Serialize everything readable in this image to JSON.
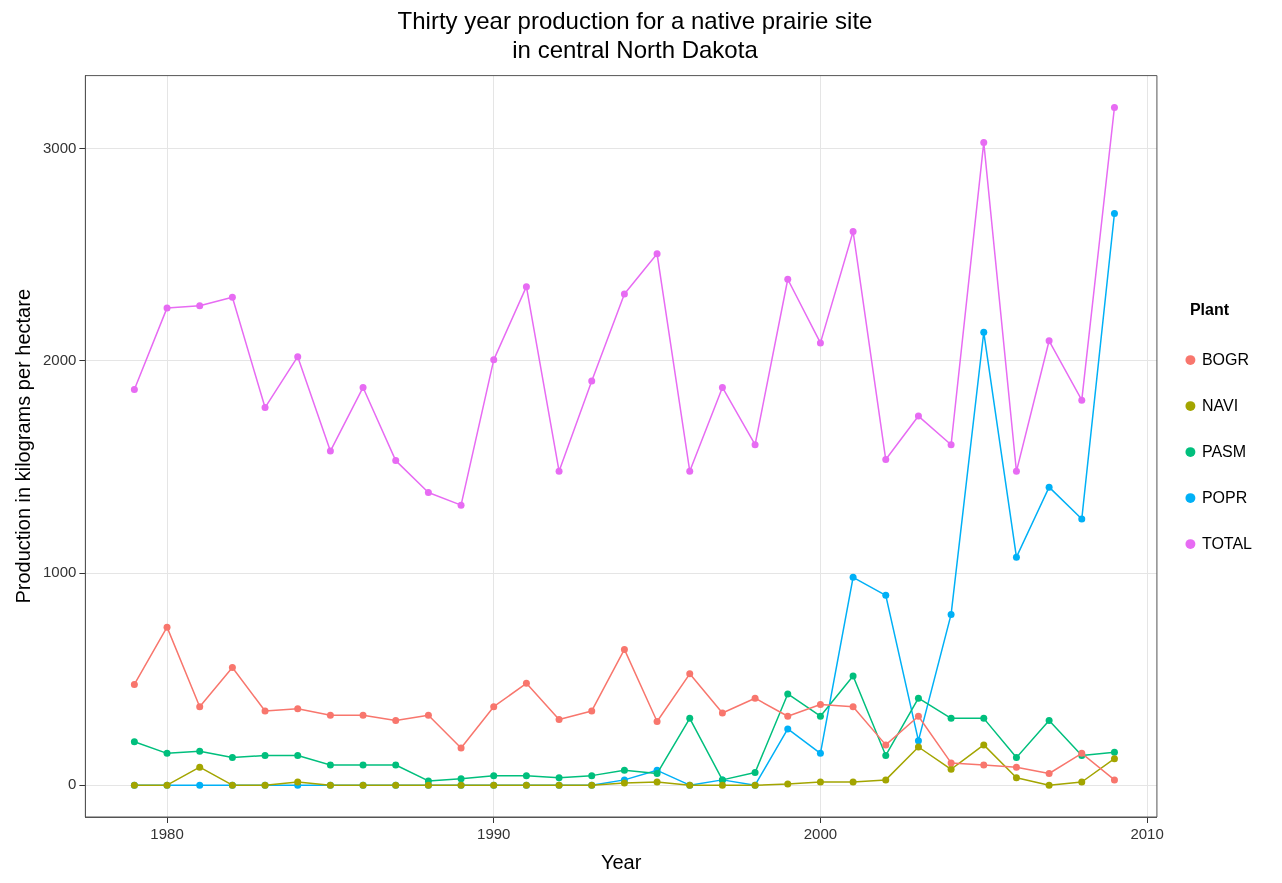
{
  "chart_data": {
    "type": "line",
    "title": "Thirty year production for a native prairie site in central North Dakota",
    "xlabel": "Year",
    "ylabel": "Production in kilograms per hectare",
    "legend_title": "Plant",
    "legend": "right",
    "grid": true,
    "marker": "circle",
    "line_style": "solid",
    "x": [
      1979,
      1980,
      1981,
      1982,
      1983,
      1984,
      1985,
      1986,
      1987,
      1988,
      1989,
      1990,
      1991,
      1992,
      1993,
      1994,
      1995,
      1996,
      1997,
      1998,
      1999,
      2000,
      2001,
      2002,
      2003,
      2004,
      2005,
      2006,
      2007,
      2008,
      2009
    ],
    "xlim": [
      1977.5,
      2010.3
    ],
    "xticks": [
      1980,
      1990,
      2000,
      2010
    ],
    "ylim": [
      -150,
      3345
    ],
    "yticks": [
      0,
      1000,
      2000,
      3000
    ],
    "series": [
      {
        "name": "BOGR",
        "color": "#f8766d",
        "values": [
          475,
          745,
          370,
          555,
          350,
          360,
          330,
          330,
          305,
          330,
          175,
          370,
          480,
          310,
          350,
          640,
          300,
          525,
          340,
          410,
          325,
          380,
          370,
          190,
          325,
          105,
          95,
          85,
          55,
          150,
          25
        ]
      },
      {
        "name": "NAVI",
        "color": "#a3a500",
        "values": [
          0,
          0,
          85,
          0,
          0,
          15,
          0,
          0,
          0,
          0,
          0,
          0,
          0,
          0,
          0,
          10,
          15,
          0,
          0,
          0,
          5,
          15,
          15,
          25,
          180,
          75,
          190,
          35,
          0,
          15,
          125
        ]
      },
      {
        "name": "PASM",
        "color": "#00bf7d",
        "values": [
          205,
          150,
          160,
          130,
          140,
          140,
          95,
          95,
          95,
          20,
          30,
          45,
          45,
          35,
          45,
          70,
          55,
          315,
          25,
          60,
          430,
          325,
          515,
          140,
          410,
          315,
          315,
          130,
          305,
          140,
          155
        ]
      },
      {
        "name": "POPR",
        "color": "#00b0f6",
        "values": [
          0,
          0,
          0,
          0,
          0,
          0,
          0,
          0,
          0,
          0,
          0,
          0,
          0,
          0,
          0,
          25,
          70,
          0,
          25,
          0,
          265,
          150,
          980,
          895,
          210,
          805,
          2135,
          1075,
          1405,
          1255,
          2695
        ]
      },
      {
        "name": "TOTAL",
        "color": "#e76bf3",
        "values": [
          1865,
          2250,
          2260,
          2300,
          1780,
          2020,
          1575,
          1875,
          1530,
          1380,
          1320,
          2005,
          2350,
          1480,
          1905,
          2315,
          2505,
          1480,
          1875,
          1605,
          2385,
          2085,
          2610,
          1535,
          1740,
          1605,
          3030,
          1480,
          2095,
          1815,
          3195
        ]
      }
    ]
  }
}
